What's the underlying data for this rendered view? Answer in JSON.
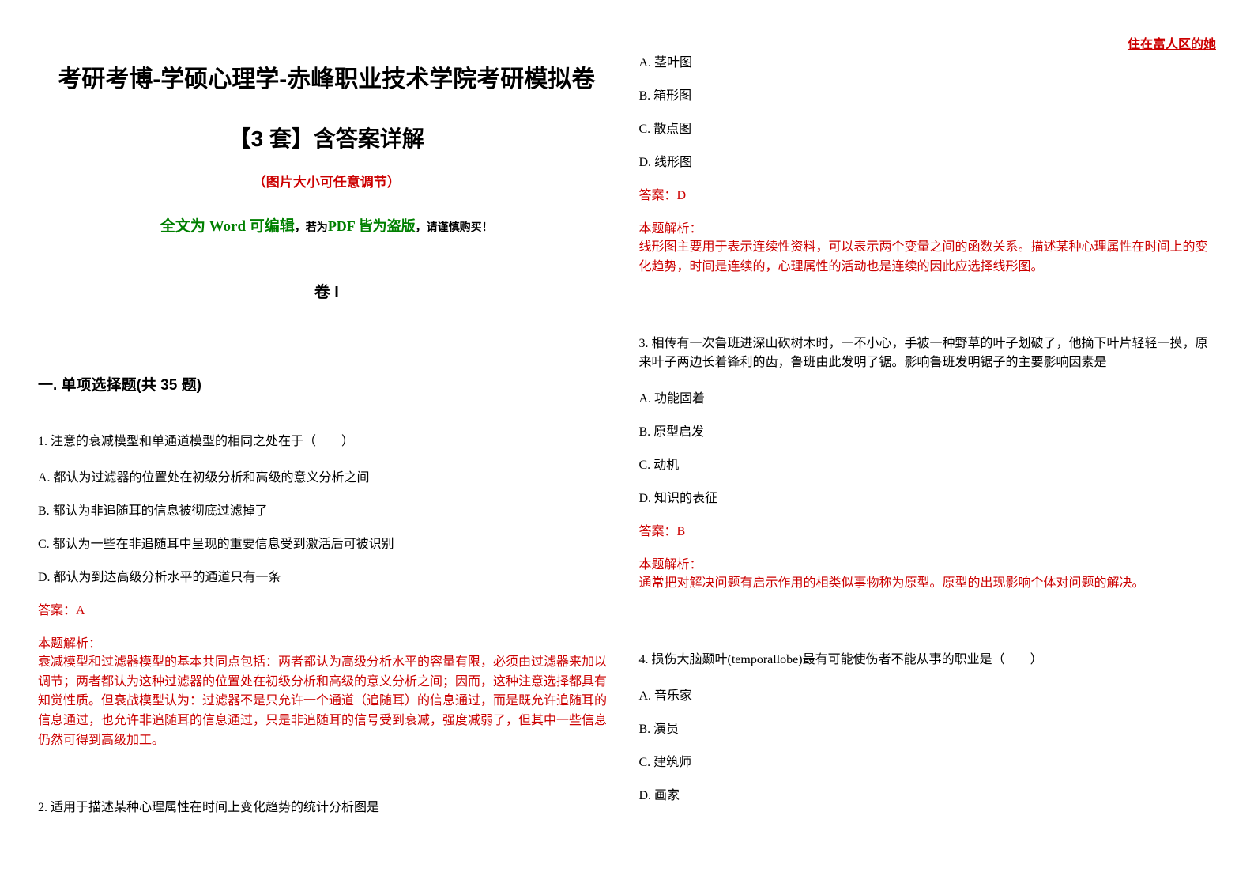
{
  "watermark": "住在富人区的她",
  "header": {
    "title": "考研考博-学硕心理学-赤峰职业技术学院考研模拟卷",
    "subtitle": "【3 套】含答案详解",
    "note_red": "（图片大小可任意调节）",
    "note_green_1": "全文为 Word 可编辑",
    "note_mid": "，若为",
    "note_green_2": "PDF 皆为盗版",
    "note_tail": "，请谨慎购买！",
    "paper_label": "卷 I"
  },
  "section": {
    "title": "一. 单项选择题(共 35 题)"
  },
  "q1": {
    "stem": "1. 注意的衰减模型和单通道模型的相同之处在于（　　）",
    "opts": {
      "A": "A. 都认为过滤器的位置处在初级分析和高级的意义分析之间",
      "B": "B. 都认为非追随耳的信息被彻底过滤掉了",
      "C": "C. 都认为一些在非追随耳中呈现的重要信息受到激活后可被识别",
      "D": "D. 都认为到达高级分析水平的通道只有一条"
    },
    "answer": "答案：A",
    "expl_label": "本题解析：",
    "expl_body": "衰减模型和过滤器模型的基本共同点包括：两者都认为高级分析水平的容量有限，必须由过滤器来加以调节；两者都认为这种过滤器的位置处在初级分析和高级的意义分析之间；因而，这种注意选择都具有知觉性质。但衰战模型认为：过滤器不是只允许一个通道（追随耳）的信息通过，而是既允许追随耳的信息通过，也允许非追随耳的信息通过，只是非追随耳的信号受到衰减，强度减弱了，但其中一些信息仍然可得到高级加工。"
  },
  "q2": {
    "stem": "2. 适用于描述某种心理属性在时间上变化趋势的统计分析图是",
    "opts": {
      "A": "A. 茎叶图",
      "B": "B. 箱形图",
      "C": "C. 散点图",
      "D": "D. 线形图"
    },
    "answer": "答案：D",
    "expl_label": "本题解析：",
    "expl_body": "线形图主要用于表示连续性资料，可以表示两个变量之间的函数关系。描述某种心理属性在时间上的变化趋势，时间是连续的，心理属性的活动也是连续的因此应选择线形图。"
  },
  "q3": {
    "stem": "3. 相传有一次鲁班进深山砍树木时，一不小心，手被一种野草的叶子划破了，他摘下叶片轻轻一摸，原来叶子两边长着锋利的齿，鲁班由此发明了锯。影响鲁班发明锯子的主要影响因素是",
    "opts": {
      "A": "A. 功能固着",
      "B": "B. 原型启发",
      "C": "C. 动机",
      "D": "D. 知识的表征"
    },
    "answer": "答案：B",
    "expl_label": "本题解析：",
    "expl_body": "通常把对解决问题有启示作用的相类似事物称为原型。原型的出现影响个体对问题的解决。"
  },
  "q4": {
    "stem": "4. 损伤大脑颞叶(temporallobe)最有可能使伤者不能从事的职业是（　　）",
    "opts": {
      "A": "A. 音乐家",
      "B": "B. 演员",
      "C": "C. 建筑师",
      "D": "D. 画家"
    }
  },
  "colors": {
    "red": "#cc0000",
    "green": "#008000",
    "black": "#000000",
    "background": "#ffffff"
  }
}
